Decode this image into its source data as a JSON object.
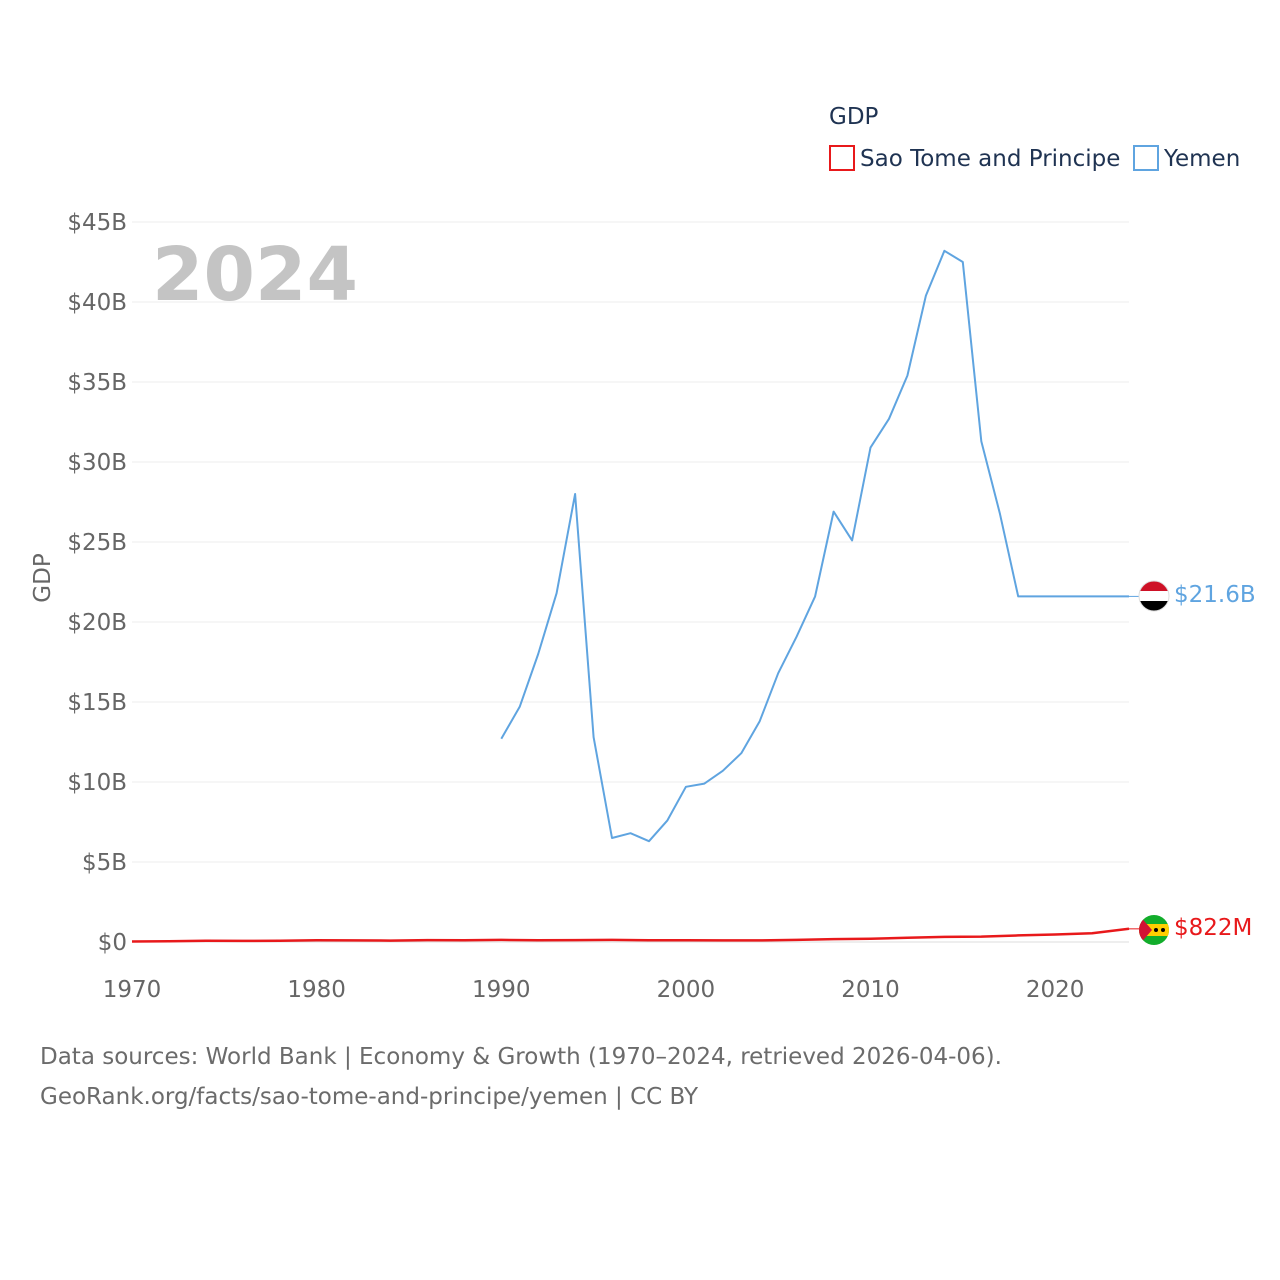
{
  "chart_data": {
    "type": "line",
    "title": "",
    "year_label": "2024",
    "xlabel": "",
    "ylabel": "GDP",
    "xlim": [
      1970,
      2024
    ],
    "ylim": [
      0,
      45
    ],
    "y_ticks": [
      {
        "value": 0,
        "label": "$0"
      },
      {
        "value": 5,
        "label": "$5B"
      },
      {
        "value": 10,
        "label": "$10B"
      },
      {
        "value": 15,
        "label": "$15B"
      },
      {
        "value": 20,
        "label": "$20B"
      },
      {
        "value": 25,
        "label": "$25B"
      },
      {
        "value": 30,
        "label": "$30B"
      },
      {
        "value": 35,
        "label": "$35B"
      },
      {
        "value": 40,
        "label": "$40B"
      },
      {
        "value": 45,
        "label": "$45B"
      }
    ],
    "x_ticks": [
      {
        "value": 1970,
        "label": "1970"
      },
      {
        "value": 1980,
        "label": "1980"
      },
      {
        "value": 1990,
        "label": "1990"
      },
      {
        "value": 2000,
        "label": "2000"
      },
      {
        "value": 2010,
        "label": "2010"
      },
      {
        "value": 2020,
        "label": "2020"
      }
    ],
    "legend": {
      "title": "GDP",
      "placement": "top-right"
    },
    "series": [
      {
        "name": "Sao Tome and Principe",
        "color": "#e8191b",
        "end_label": "$822M",
        "flag_icon": "sao-tome-flag-icon",
        "x": [
          1970,
          1972,
          1974,
          1976,
          1978,
          1980,
          1982,
          1984,
          1986,
          1988,
          1990,
          1992,
          1994,
          1996,
          1998,
          2000,
          2002,
          2004,
          2006,
          2008,
          2010,
          2012,
          2014,
          2016,
          2018,
          2020,
          2022,
          2024
        ],
        "values": [
          0.03,
          0.05,
          0.08,
          0.07,
          0.08,
          0.11,
          0.1,
          0.09,
          0.12,
          0.11,
          0.13,
          0.11,
          0.12,
          0.13,
          0.11,
          0.11,
          0.1,
          0.1,
          0.13,
          0.18,
          0.2,
          0.26,
          0.32,
          0.34,
          0.41,
          0.47,
          0.55,
          0.822
        ]
      },
      {
        "name": "Yemen",
        "color": "#5fa4e0",
        "end_label": "$21.6B",
        "flag_icon": "yemen-flag-icon",
        "x": [
          1990,
          1991,
          1992,
          1993,
          1994,
          1995,
          1996,
          1997,
          1998,
          1999,
          2000,
          2001,
          2002,
          2003,
          2004,
          2005,
          2006,
          2007,
          2008,
          2009,
          2010,
          2011,
          2012,
          2013,
          2014,
          2015,
          2016,
          2017,
          2018,
          2019,
          2020,
          2021,
          2022,
          2023,
          2024
        ],
        "values": [
          12.7,
          14.7,
          18.0,
          21.8,
          28.0,
          12.8,
          6.5,
          6.8,
          6.3,
          7.6,
          9.7,
          9.9,
          10.7,
          11.8,
          13.8,
          16.8,
          19.1,
          21.6,
          26.9,
          25.1,
          30.9,
          32.7,
          35.4,
          40.4,
          43.2,
          42.5,
          31.3,
          26.8,
          21.6,
          21.6,
          21.6,
          21.6,
          21.6,
          21.6,
          21.6
        ]
      }
    ]
  },
  "source": {
    "line1": "Data sources: World Bank | Economy & Growth (1970–2024, retrieved 2026-04-06).",
    "line2": "GeoRank.org/facts/sao-tome-and-principe/yemen | CC BY"
  }
}
